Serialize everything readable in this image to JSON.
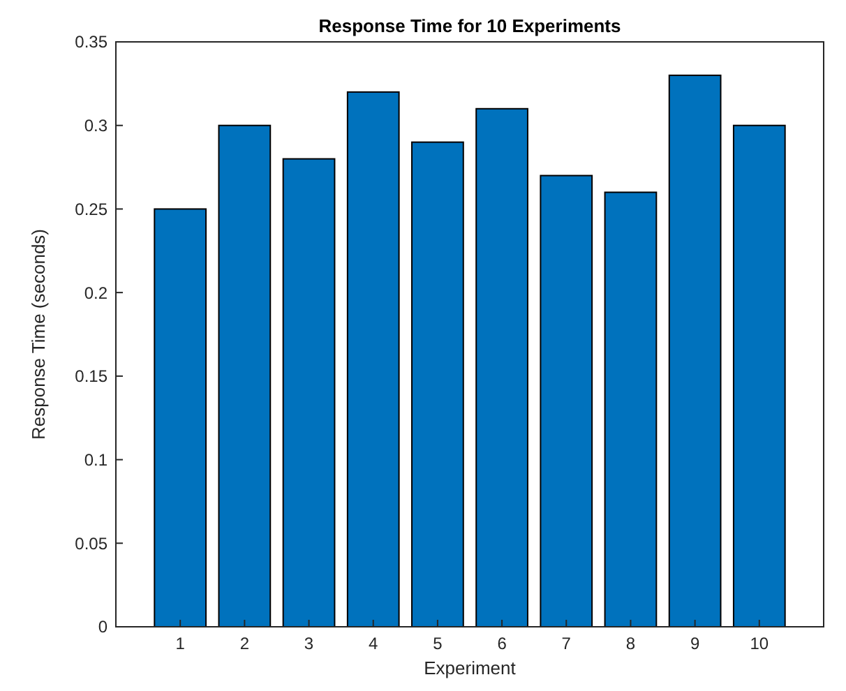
{
  "chart_data": {
    "type": "bar",
    "title": "Response Time for 10 Experiments",
    "xlabel": "Experiment",
    "ylabel": "Response Time (seconds)",
    "categories": [
      "1",
      "2",
      "3",
      "4",
      "5",
      "6",
      "7",
      "8",
      "9",
      "10"
    ],
    "values": [
      0.25,
      0.3,
      0.28,
      0.32,
      0.29,
      0.31,
      0.27,
      0.26,
      0.33,
      0.3
    ],
    "color": "#0072bd",
    "ylim": [
      0,
      0.35
    ],
    "yticks": [
      0,
      0.05,
      0.1,
      0.15,
      0.2,
      0.25,
      0.3,
      0.35
    ],
    "grid": false
  }
}
